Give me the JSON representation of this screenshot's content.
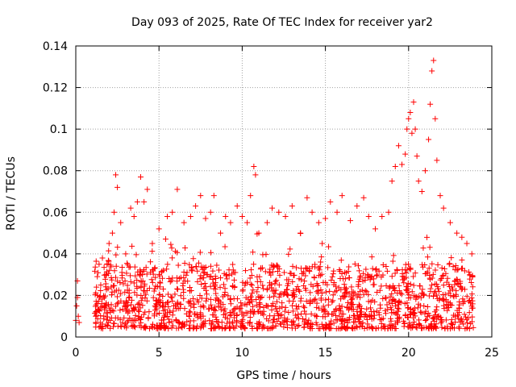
{
  "chart_data": {
    "type": "scatter",
    "title": "Day 093 of 2025, Rate Of TEC Index for receiver yar2",
    "xlabel": "GPS time / hours",
    "ylabel": "ROTI / TECUs",
    "xlim": [
      0,
      25
    ],
    "ylim": [
      0,
      0.14
    ],
    "xticks": [
      "0",
      "5",
      "10",
      "15",
      "20",
      "25"
    ],
    "yticks": [
      "0",
      "0.02",
      "0.04",
      "0.06",
      "0.08",
      "0.1",
      "0.12",
      "0.14"
    ],
    "grid": true,
    "marker": "+",
    "series": [
      {
        "name": "yar2 ROTI",
        "color": "#ff0000",
        "points": [
          [
            0.0,
            0.008
          ],
          [
            0.05,
            0.015
          ],
          [
            0.1,
            0.027
          ],
          [
            0.1,
            0.019
          ],
          [
            0.15,
            0.01
          ],
          [
            0.2,
            0.007
          ],
          [
            1.2,
            0.01
          ],
          [
            1.3,
            0.02
          ],
          [
            1.4,
            0.035
          ],
          [
            1.5,
            0.025
          ],
          [
            1.6,
            0.038
          ],
          [
            1.7,
            0.015
          ],
          [
            1.8,
            0.03
          ],
          [
            2.0,
            0.045
          ],
          [
            2.2,
            0.05
          ],
          [
            2.3,
            0.06
          ],
          [
            2.4,
            0.078
          ],
          [
            2.5,
            0.072
          ],
          [
            2.7,
            0.055
          ],
          [
            3.0,
            0.04
          ],
          [
            3.3,
            0.062
          ],
          [
            3.5,
            0.058
          ],
          [
            3.7,
            0.065
          ],
          [
            3.9,
            0.077
          ],
          [
            4.1,
            0.065
          ],
          [
            4.3,
            0.071
          ],
          [
            4.6,
            0.045
          ],
          [
            5.0,
            0.052
          ],
          [
            5.5,
            0.058
          ],
          [
            5.8,
            0.06
          ],
          [
            6.1,
            0.071
          ],
          [
            6.5,
            0.055
          ],
          [
            6.9,
            0.058
          ],
          [
            7.2,
            0.063
          ],
          [
            7.5,
            0.068
          ],
          [
            7.8,
            0.057
          ],
          [
            8.1,
            0.06
          ],
          [
            8.3,
            0.068
          ],
          [
            8.7,
            0.05
          ],
          [
            9.0,
            0.058
          ],
          [
            9.3,
            0.055
          ],
          [
            9.7,
            0.063
          ],
          [
            10.0,
            0.058
          ],
          [
            10.3,
            0.055
          ],
          [
            10.5,
            0.068
          ],
          [
            10.7,
            0.082
          ],
          [
            10.8,
            0.078
          ],
          [
            11.0,
            0.05
          ],
          [
            11.5,
            0.055
          ],
          [
            11.8,
            0.062
          ],
          [
            12.2,
            0.06
          ],
          [
            12.6,
            0.058
          ],
          [
            13.0,
            0.063
          ],
          [
            13.5,
            0.05
          ],
          [
            13.9,
            0.067
          ],
          [
            14.2,
            0.06
          ],
          [
            14.6,
            0.055
          ],
          [
            15.0,
            0.057
          ],
          [
            15.3,
            0.065
          ],
          [
            15.7,
            0.06
          ],
          [
            16.0,
            0.068
          ],
          [
            16.5,
            0.056
          ],
          [
            16.9,
            0.063
          ],
          [
            17.3,
            0.067
          ],
          [
            17.6,
            0.058
          ],
          [
            18.0,
            0.052
          ],
          [
            18.4,
            0.058
          ],
          [
            18.8,
            0.06
          ],
          [
            19.0,
            0.075
          ],
          [
            19.2,
            0.082
          ],
          [
            19.4,
            0.092
          ],
          [
            19.6,
            0.083
          ],
          [
            19.8,
            0.088
          ],
          [
            19.9,
            0.1
          ],
          [
            20.0,
            0.105
          ],
          [
            20.1,
            0.108
          ],
          [
            20.2,
            0.098
          ],
          [
            20.3,
            0.113
          ],
          [
            20.4,
            0.1
          ],
          [
            20.5,
            0.087
          ],
          [
            20.6,
            0.075
          ],
          [
            20.8,
            0.07
          ],
          [
            21.0,
            0.08
          ],
          [
            21.2,
            0.095
          ],
          [
            21.3,
            0.112
          ],
          [
            21.4,
            0.128
          ],
          [
            21.5,
            0.133
          ],
          [
            21.6,
            0.105
          ],
          [
            21.7,
            0.085
          ],
          [
            21.9,
            0.068
          ],
          [
            22.1,
            0.062
          ],
          [
            22.5,
            0.055
          ],
          [
            22.9,
            0.05
          ],
          [
            23.2,
            0.048
          ],
          [
            23.5,
            0.045
          ],
          [
            23.8,
            0.04
          ]
        ],
        "band": {
          "x_start": 1.1,
          "x_end": 23.9,
          "y_low": 0.004,
          "y_typical_high": 0.035
        }
      }
    ]
  }
}
